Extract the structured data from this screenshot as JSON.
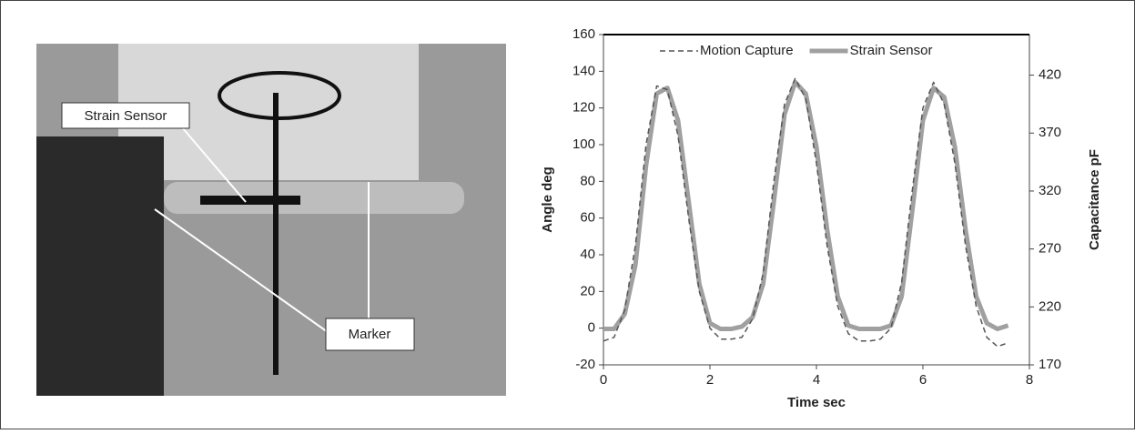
{
  "photo": {
    "labels": [
      "Strain Sensor",
      "Marker"
    ]
  },
  "chart_data": {
    "type": "line",
    "legend": "top",
    "x_label": "Time sec",
    "y_label": "Angle deg",
    "y2_label": "Capacitance pF",
    "x": [
      0,
      0.2,
      0.4,
      0.6,
      0.8,
      1.0,
      1.2,
      1.4,
      1.6,
      1.8,
      2.0,
      2.2,
      2.4,
      2.6,
      2.8,
      3.0,
      3.2,
      3.4,
      3.6,
      3.8,
      4.0,
      4.2,
      4.4,
      4.6,
      4.8,
      5.0,
      5.2,
      5.4,
      5.6,
      5.8,
      6.0,
      6.2,
      6.4,
      6.6,
      6.8,
      7.0,
      7.2,
      7.4,
      7.6
    ],
    "series": [
      {
        "name": "Motion Capture",
        "color": "#555555",
        "dashed": true,
        "values": [
          -7,
          -5,
          10,
          45,
          100,
          132,
          130,
          105,
          60,
          20,
          0,
          -6,
          -6,
          -5,
          5,
          30,
          80,
          122,
          136,
          125,
          90,
          45,
          12,
          -3,
          -7,
          -7,
          -6,
          0,
          25,
          75,
          120,
          134,
          122,
          90,
          45,
          12,
          -5,
          -10,
          -8
        ]
      },
      {
        "name": "Strain Sensor",
        "color": "#a0a0a0",
        "axis": "y2",
        "values": [
          201,
          201,
          214,
          256,
          342,
          404,
          409,
          381,
          311,
          240,
          206,
          201,
          201,
          203,
          211,
          240,
          311,
          386,
          414,
          404,
          358,
          287,
          229,
          204,
          201,
          201,
          201,
          204,
          229,
          303,
          381,
          409,
          401,
          358,
          287,
          229,
          206,
          201,
          204
        ]
      }
    ],
    "xlim": [
      0,
      8
    ],
    "xticks": [
      0,
      2,
      4,
      6,
      8
    ],
    "ylim": [
      -20,
      160
    ],
    "yticks": [
      -20,
      0,
      20,
      40,
      60,
      80,
      100,
      120,
      140,
      160
    ],
    "y2lim": [
      170,
      455
    ],
    "y2ticks": [
      170,
      220,
      270,
      320,
      370,
      420
    ]
  }
}
